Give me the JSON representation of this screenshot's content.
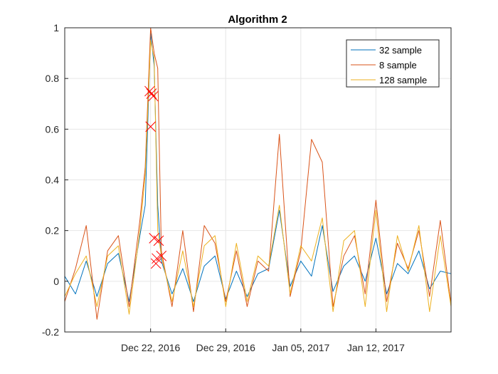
{
  "chart_data": {
    "type": "line",
    "title": "Algorithm 2",
    "xlabel": "",
    "ylabel": "",
    "x_range": [
      "2016-12-14",
      "2017-01-19"
    ],
    "ylim": [
      -0.2,
      1
    ],
    "y_ticks": [
      -0.2,
      0,
      0.2,
      0.4,
      0.6,
      0.8,
      1
    ],
    "x_ticks": [
      {
        "date": "2016-12-22",
        "label": "Dec 22, 2016"
      },
      {
        "date": "2016-12-29",
        "label": "Dec 29, 2016"
      },
      {
        "date": "2017-01-05",
        "label": "Jan 05, 2017"
      },
      {
        "date": "2017-01-12",
        "label": "Jan 12, 2017"
      }
    ],
    "grid": true,
    "legend_position": "top-right",
    "series": [
      {
        "name": "32 sample",
        "color": "#0072BD",
        "points": [
          [
            "2016-12-14",
            0.02
          ],
          [
            "2016-12-15",
            -0.05
          ],
          [
            "2016-12-16",
            0.08
          ],
          [
            "2016-12-17",
            -0.06
          ],
          [
            "2016-12-18",
            0.07
          ],
          [
            "2016-12-19",
            0.11
          ],
          [
            "2016-12-20",
            -0.08
          ],
          [
            "2016-12-21",
            0.18
          ],
          [
            "2016-12-21T12:00",
            0.3
          ],
          [
            "2016-12-22",
            0.98
          ],
          [
            "2016-12-22T08:00",
            0.85
          ],
          [
            "2016-12-22T16:00",
            0.3
          ],
          [
            "2016-12-23",
            0.08
          ],
          [
            "2016-12-24",
            -0.05
          ],
          [
            "2016-12-25",
            0.05
          ],
          [
            "2016-12-26",
            -0.08
          ],
          [
            "2016-12-27",
            0.06
          ],
          [
            "2016-12-28",
            0.1
          ],
          [
            "2016-12-29",
            -0.07
          ],
          [
            "2016-12-30",
            0.04
          ],
          [
            "2016-12-31",
            -0.06
          ],
          [
            "2017-01-01",
            0.03
          ],
          [
            "2017-01-02",
            0.05
          ],
          [
            "2017-01-03",
            0.28
          ],
          [
            "2017-01-04",
            -0.02
          ],
          [
            "2017-01-05",
            0.08
          ],
          [
            "2017-01-06",
            0.02
          ],
          [
            "2017-01-07",
            0.22
          ],
          [
            "2017-01-08",
            -0.04
          ],
          [
            "2017-01-09",
            0.06
          ],
          [
            "2017-01-10",
            0.1
          ],
          [
            "2017-01-11",
            0.0
          ],
          [
            "2017-01-12",
            0.17
          ],
          [
            "2017-01-13",
            -0.05
          ],
          [
            "2017-01-14",
            0.07
          ],
          [
            "2017-01-15",
            0.03
          ],
          [
            "2017-01-16",
            0.12
          ],
          [
            "2017-01-17",
            -0.03
          ],
          [
            "2017-01-18",
            0.04
          ],
          [
            "2017-01-19",
            0.03
          ]
        ]
      },
      {
        "name": "8 sample",
        "color": "#D95319",
        "points": [
          [
            "2016-12-14",
            -0.08
          ],
          [
            "2016-12-15",
            0.05
          ],
          [
            "2016-12-16",
            0.22
          ],
          [
            "2016-12-17",
            -0.15
          ],
          [
            "2016-12-18",
            0.12
          ],
          [
            "2016-12-19",
            0.18
          ],
          [
            "2016-12-20",
            -0.1
          ],
          [
            "2016-12-21",
            0.24
          ],
          [
            "2016-12-21T12:00",
            0.45
          ],
          [
            "2016-12-22",
            1.0
          ],
          [
            "2016-12-22T08:00",
            0.9
          ],
          [
            "2016-12-22T16:00",
            0.84
          ],
          [
            "2016-12-23",
            0.12
          ],
          [
            "2016-12-24",
            -0.1
          ],
          [
            "2016-12-25",
            0.2
          ],
          [
            "2016-12-26",
            -0.12
          ],
          [
            "2016-12-27",
            0.22
          ],
          [
            "2016-12-28",
            0.15
          ],
          [
            "2016-12-29",
            -0.08
          ],
          [
            "2016-12-30",
            0.12
          ],
          [
            "2016-12-31",
            -0.1
          ],
          [
            "2017-01-01",
            0.08
          ],
          [
            "2017-01-02",
            0.04
          ],
          [
            "2017-01-03",
            0.58
          ],
          [
            "2017-01-04",
            -0.06
          ],
          [
            "2017-01-05",
            0.12
          ],
          [
            "2017-01-06",
            0.56
          ],
          [
            "2017-01-07",
            0.47
          ],
          [
            "2017-01-08",
            -0.1
          ],
          [
            "2017-01-09",
            0.1
          ],
          [
            "2017-01-10",
            0.18
          ],
          [
            "2017-01-11",
            -0.05
          ],
          [
            "2017-01-12",
            0.32
          ],
          [
            "2017-01-13",
            -0.08
          ],
          [
            "2017-01-14",
            0.15
          ],
          [
            "2017-01-15",
            0.05
          ],
          [
            "2017-01-16",
            0.2
          ],
          [
            "2017-01-17",
            -0.06
          ],
          [
            "2017-01-18",
            0.24
          ],
          [
            "2017-01-19",
            -0.09
          ]
        ]
      },
      {
        "name": "128 sample",
        "color": "#EDB120",
        "points": [
          [
            "2016-12-14",
            -0.06
          ],
          [
            "2016-12-15",
            0.03
          ],
          [
            "2016-12-16",
            0.1
          ],
          [
            "2016-12-17",
            -0.1
          ],
          [
            "2016-12-18",
            0.1
          ],
          [
            "2016-12-19",
            0.14
          ],
          [
            "2016-12-20",
            -0.13
          ],
          [
            "2016-12-21",
            0.2
          ],
          [
            "2016-12-21T12:00",
            0.42
          ],
          [
            "2016-12-22",
            0.95
          ],
          [
            "2016-12-22T08:00",
            0.88
          ],
          [
            "2016-12-22T16:00",
            0.2
          ],
          [
            "2016-12-23",
            0.1
          ],
          [
            "2016-12-24",
            -0.08
          ],
          [
            "2016-12-25",
            0.12
          ],
          [
            "2016-12-26",
            -0.1
          ],
          [
            "2016-12-27",
            0.14
          ],
          [
            "2016-12-28",
            0.18
          ],
          [
            "2016-12-29",
            -0.1
          ],
          [
            "2016-12-30",
            0.15
          ],
          [
            "2016-12-31",
            -0.08
          ],
          [
            "2017-01-01",
            0.1
          ],
          [
            "2017-01-02",
            0.06
          ],
          [
            "2017-01-03",
            0.3
          ],
          [
            "2017-01-04",
            -0.05
          ],
          [
            "2017-01-05",
            0.14
          ],
          [
            "2017-01-06",
            0.08
          ],
          [
            "2017-01-07",
            0.25
          ],
          [
            "2017-01-08",
            -0.12
          ],
          [
            "2017-01-09",
            0.16
          ],
          [
            "2017-01-10",
            0.2
          ],
          [
            "2017-01-11",
            -0.1
          ],
          [
            "2017-01-12",
            0.28
          ],
          [
            "2017-01-13",
            -0.12
          ],
          [
            "2017-01-14",
            0.18
          ],
          [
            "2017-01-15",
            0.04
          ],
          [
            "2017-01-16",
            0.22
          ],
          [
            "2017-01-17",
            -0.12
          ],
          [
            "2017-01-18",
            0.18
          ],
          [
            "2017-01-19",
            -0.1
          ]
        ]
      }
    ],
    "markers": {
      "symbol": "x",
      "color": "#FF0000",
      "points": [
        [
          "2016-12-21T22:00",
          0.75
        ],
        [
          "2016-12-22T02:00",
          0.74
        ],
        [
          "2016-12-22T06:00",
          0.73
        ],
        [
          "2016-12-22",
          0.61
        ],
        [
          "2016-12-22T08:00",
          0.17
        ],
        [
          "2016-12-22T18:00",
          0.16
        ],
        [
          "2016-12-23",
          0.1
        ],
        [
          "2016-12-22T14:00",
          0.09
        ],
        [
          "2016-12-22T12:00",
          0.07
        ]
      ]
    }
  }
}
